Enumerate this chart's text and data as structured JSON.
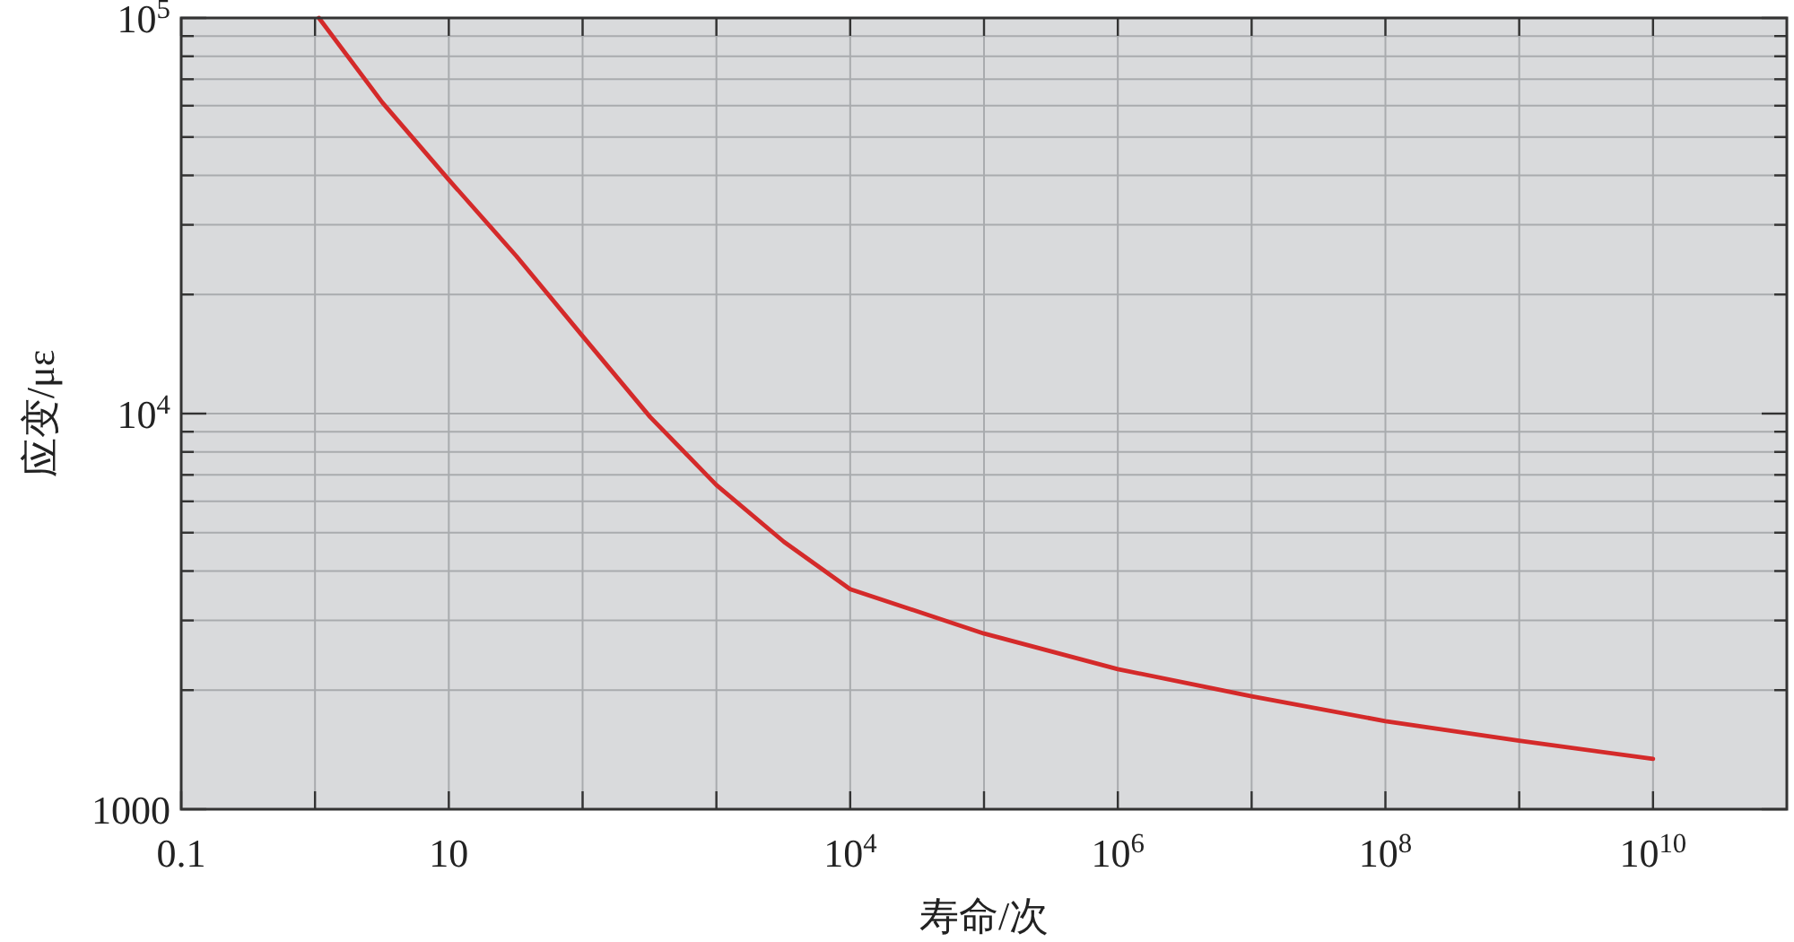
{
  "chart_data": {
    "type": "line",
    "xlabel": "寿命/次",
    "ylabel": "应变/με",
    "log": "xy",
    "grid": true,
    "xlim": [
      0.1,
      100000000000
    ],
    "ylim": [
      1000,
      100000
    ],
    "xticks": [
      0.1,
      {
        "value": 1,
        "label": null
      },
      10,
      {
        "value": 100,
        "label": null
      },
      {
        "value": 1000,
        "label": null
      },
      {
        "value": 10000,
        "label": "10$^{4}$"
      },
      {
        "value": 100000,
        "label": null
      },
      {
        "value": 1000000,
        "label": "10$^{6}$"
      },
      {
        "value": 10000000,
        "label": null
      },
      {
        "value": 100000000,
        "label": "10$^{8}$"
      },
      {
        "value": 1000000000,
        "label": null
      },
      {
        "value": 10000000000,
        "label": "10$^{10}$"
      }
    ],
    "yticks": [
      1000,
      {
        "value": 2000,
        "label": null
      },
      {
        "value": 3000,
        "label": null
      },
      {
        "value": 4000,
        "label": null
      },
      {
        "value": 5000,
        "label": null
      },
      {
        "value": 6000,
        "label": null
      },
      {
        "value": 7000,
        "label": null
      },
      {
        "value": 8000,
        "label": null
      },
      {
        "value": 9000,
        "label": null
      },
      {
        "value": 10000,
        "label": "10$^{4}$"
      },
      {
        "value": 20000,
        "label": null
      },
      {
        "value": 30000,
        "label": null
      },
      {
        "value": 40000,
        "label": null
      },
      {
        "value": 50000,
        "label": null
      },
      {
        "value": 60000,
        "label": null
      },
      {
        "value": 70000,
        "label": null
      },
      {
        "value": 80000,
        "label": null
      },
      {
        "value": 90000,
        "label": null
      },
      {
        "value": 100000,
        "label": "10$^{5}$"
      }
    ],
    "series": [
      {
        "color": "#d42a2a",
        "x": [
          1.07,
          3.2,
          10,
          32,
          100,
          320,
          1000,
          3200,
          10000,
          100000,
          1000000,
          10000000,
          100000000,
          1000000000,
          10000000000
        ],
        "values": [
          100000,
          61000,
          39000,
          25000,
          15700,
          9800,
          6600,
          4740,
          3600,
          2780,
          2260,
          1930,
          1670,
          1490,
          1340
        ]
      }
    ]
  }
}
